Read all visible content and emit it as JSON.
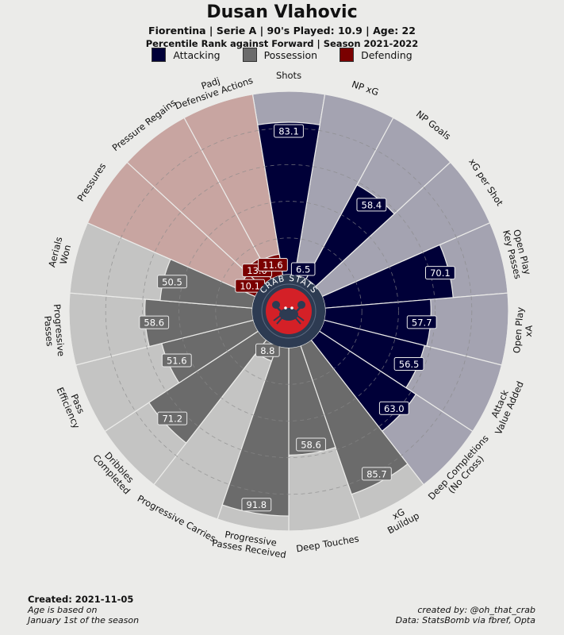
{
  "header": {
    "title": "Dusan Vlahovic",
    "subtitle": "Fiorentina  | Serie A | 90's Played: 10.9 | Age: 22",
    "subtitle2": "Percentile Rank against Forward  | Season 2021-2022"
  },
  "legend": [
    {
      "label": "Attacking",
      "color": "#000038"
    },
    {
      "label": "Possession",
      "color": "#6b6b6b"
    },
    {
      "label": "Defending",
      "color": "#7a0000"
    }
  ],
  "logo": {
    "text": "CRAB STATS",
    "icon": "crab-icon"
  },
  "chart_data": {
    "type": "polar-bar",
    "rlim": [
      0,
      100
    ],
    "grid": true,
    "categories": [
      {
        "label": "Shots",
        "value": 83.1,
        "group": "Attacking"
      },
      {
        "label": "NP xG",
        "value": 6.5,
        "group": "Attacking"
      },
      {
        "label": "NP Goals",
        "value": 58.4,
        "group": "Attacking"
      },
      {
        "label": "xG per Shot",
        "value": 0,
        "group": "Attacking"
      },
      {
        "label": "Open Play\nKey Passes",
        "value": 70.1,
        "group": "Attacking"
      },
      {
        "label": "Open Play\nxA",
        "value": 57.7,
        "group": "Attacking"
      },
      {
        "label": "Attack\nValue Added",
        "value": 56.5,
        "group": "Attacking"
      },
      {
        "label": "Deep Completions\n(No Cross)",
        "value": 63.0,
        "group": "Attacking"
      },
      {
        "label": "xG\nBuildup",
        "value": 85.7,
        "group": "Possession"
      },
      {
        "label": "Deep Touches",
        "value": 58.6,
        "group": "Possession"
      },
      {
        "label": "Progressive\nPasses Received",
        "value": 91.8,
        "group": "Possession"
      },
      {
        "label": "Progressive Carries",
        "value": 8.8,
        "group": "Possession"
      },
      {
        "label": "Dribbles\nCompleted",
        "value": 71.2,
        "group": "Possession"
      },
      {
        "label": "Pass\nEfficiency",
        "value": 51.6,
        "group": "Possession"
      },
      {
        "label": "Progressive\nPasses",
        "value": 58.6,
        "group": "Possession"
      },
      {
        "label": "Aerials\nWon",
        "value": 50.5,
        "group": "Possession"
      },
      {
        "label": "Pressures",
        "value": 10.1,
        "group": "Defending"
      },
      {
        "label": "Pressure Regains",
        "value": 13.0,
        "group": "Defending"
      },
      {
        "label": "Padj\nDefensive Actions",
        "value": 11.6,
        "group": "Defending"
      }
    ],
    "value_labels": [
      "83.1",
      "6.5",
      "58.4",
      "",
      "70.1",
      "57.7",
      "56.5",
      "63.0",
      "85.7",
      "58.6",
      "91.8",
      "8.8",
      "71.2",
      "51.6",
      "58.6",
      "50.5",
      "10.1",
      "13.0",
      "11.6"
    ],
    "group_colors": {
      "Attacking": {
        "bar": "#000038",
        "bg": "#a4a3b1"
      },
      "Possession": {
        "bar": "#6b6b6b",
        "bg": "#c4c4c3"
      },
      "Defending": {
        "bar": "#7a0000",
        "bg": "#c8a5a1"
      }
    }
  },
  "footer": {
    "created": "Created: 2021-11-05",
    "note1": "Age is based on",
    "note2": "January 1st of the season",
    "credit": "created by: @oh_that_crab",
    "source": "Data: StatsBomb via fbref, Opta"
  }
}
